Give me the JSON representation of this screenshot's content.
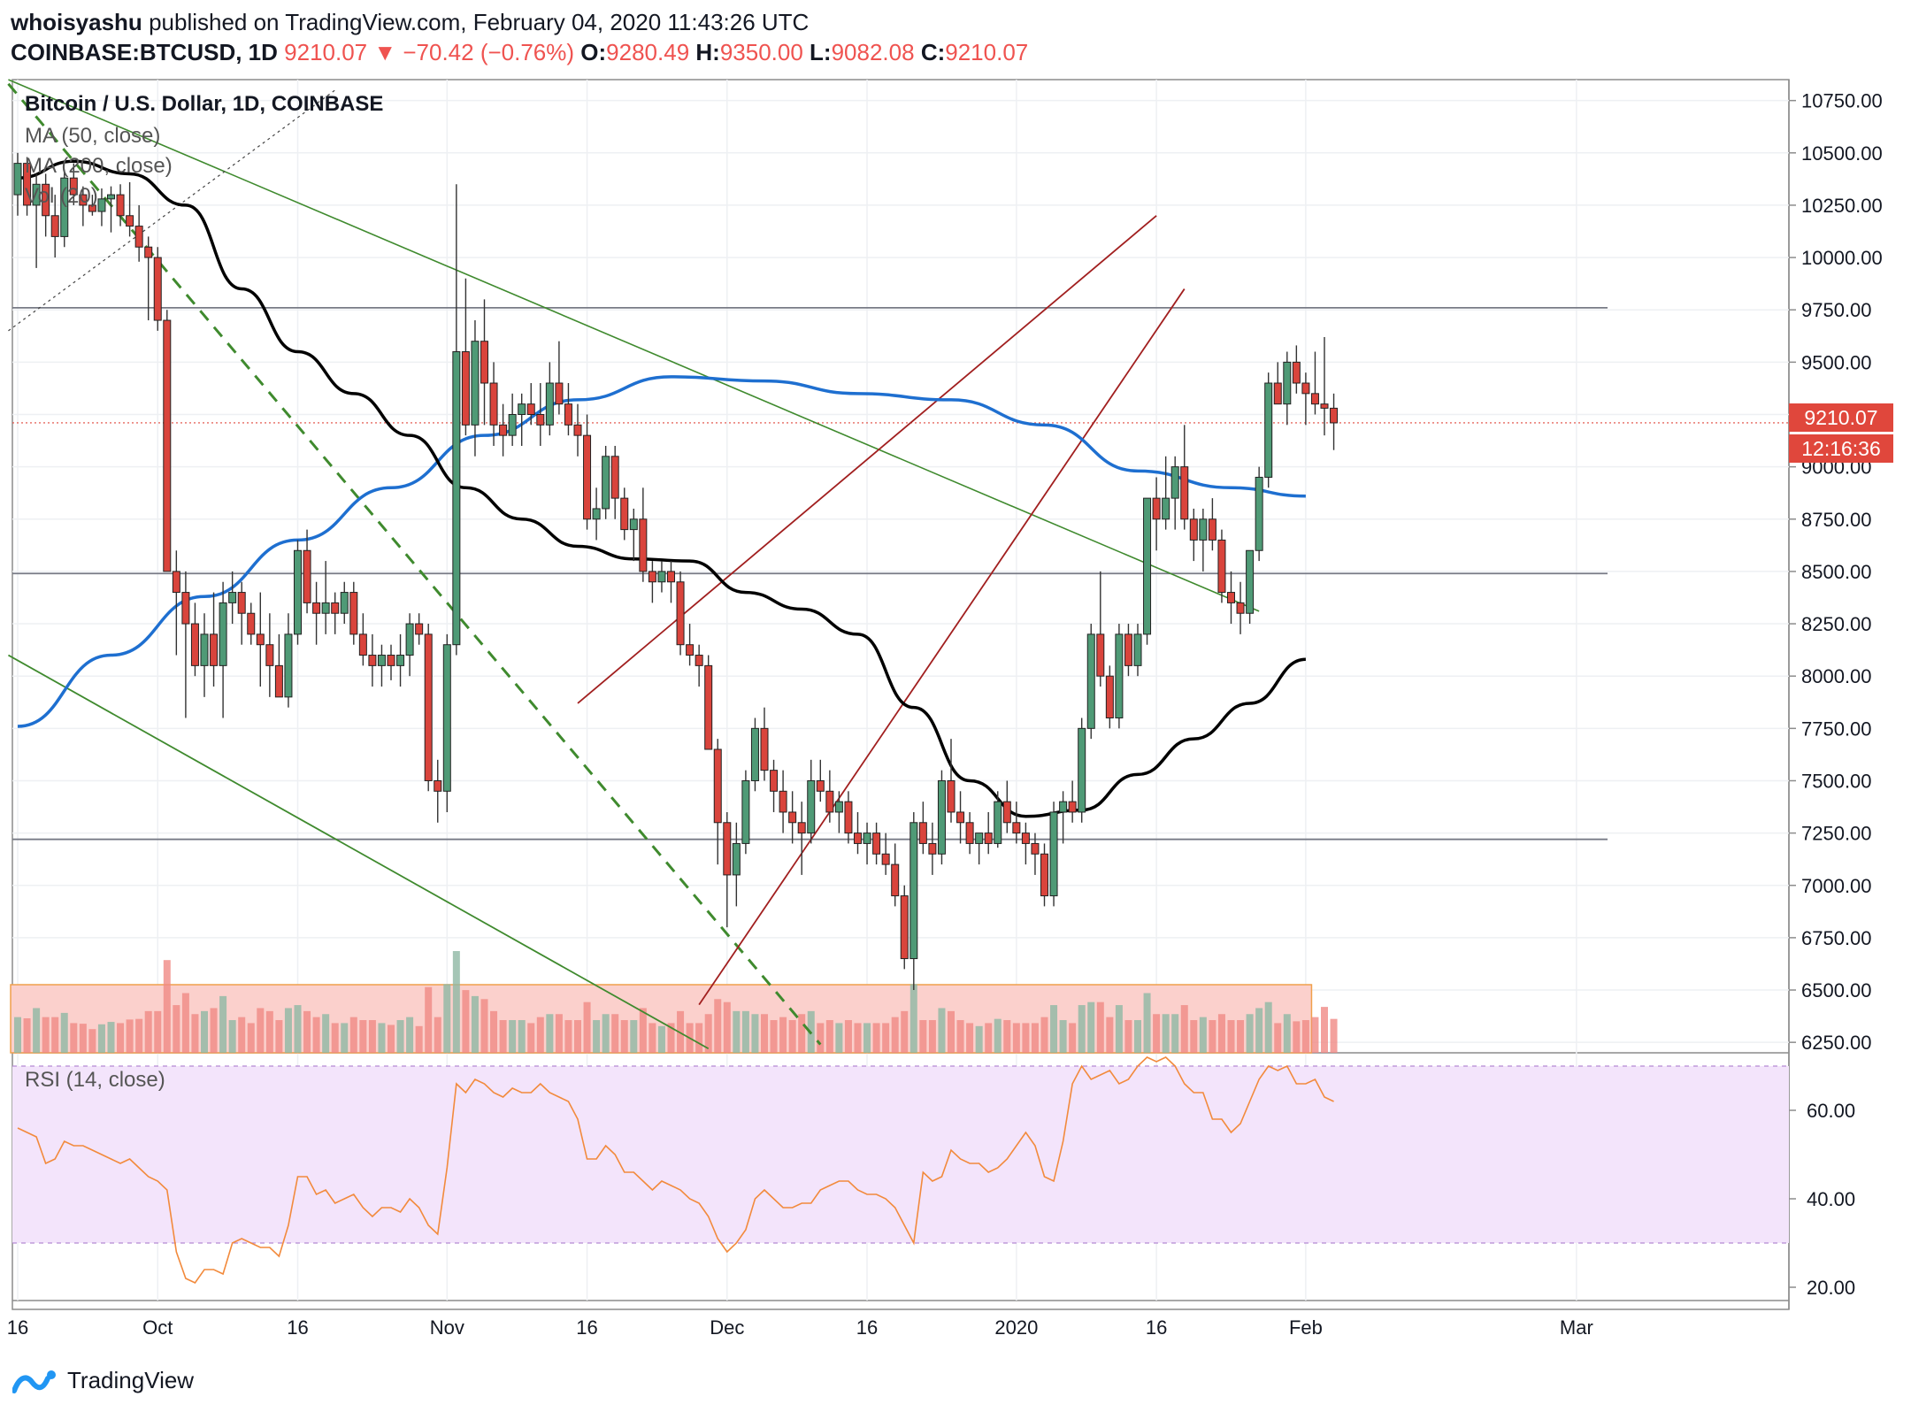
{
  "header": {
    "publisher": "whoisyashu",
    "published_text": "published on TradingView.com, February 04, 2020 11:43:26 UTC",
    "symbol": "COINBASE:BTCUSD, 1D",
    "last": "9210.07",
    "change": "−70.42 (−0.76%)",
    "o_label": "O:",
    "o_value": "9280.49",
    "h_label": "H:",
    "h_value": "9350.00",
    "l_label": "L:",
    "l_value": "9082.08",
    "c_label": "C:",
    "c_value": "9210.07"
  },
  "legend": {
    "title": "Bitcoin / U.S. Dollar, 1D, COINBASE",
    "ma50": "MA (50, close)",
    "ma200": "MA (200, close)",
    "vol": "Vol (20)",
    "rsi": "RSI (14, close)"
  },
  "price_badge": {
    "value": "9210.07",
    "countdown": "12:16:36"
  },
  "footer": {
    "brand": "TradingView"
  },
  "colors": {
    "up": "#4f9a76",
    "down": "#d9443c",
    "ma50": "#000000",
    "ma200": "#1e6fd0",
    "channel": "#a11f1f",
    "green_line": "#3f8a2e",
    "rsi": "#f28a3c",
    "rsi_band": "#f3e4fb",
    "vol_band": "#fbd0cc",
    "price_badge": "#e0473c"
  },
  "chart_data": {
    "type": "candlestick",
    "price_axis": {
      "ticks": [
        6250,
        6500,
        6750,
        7000,
        7250,
        7500,
        7750,
        8000,
        8250,
        8500,
        8750,
        9000,
        9250,
        9500,
        9750,
        10000,
        10250,
        10500,
        10750
      ],
      "range": [
        6200,
        10850
      ]
    },
    "rsi_axis": {
      "ticks": [
        20,
        40,
        60
      ],
      "range": [
        17,
        72
      ],
      "bands": [
        30,
        70
      ]
    },
    "x_labels": [
      "16",
      "Oct",
      "16",
      "Nov",
      "16",
      "Dec",
      "16",
      "2020",
      "16",
      "Feb",
      "Mar"
    ],
    "x_label_days": [
      0,
      15,
      30,
      46,
      61,
      76,
      91,
      107,
      122,
      138,
      167
    ],
    "horizontal_levels": [
      9760,
      8490,
      7220
    ],
    "candles_ohlc": [
      [
        10300,
        10500,
        10200,
        10450
      ],
      [
        10450,
        10480,
        10200,
        10250
      ],
      [
        10250,
        10400,
        9950,
        10350
      ],
      [
        10350,
        10400,
        10100,
        10200
      ],
      [
        10200,
        10300,
        10000,
        10100
      ],
      [
        10100,
        10420,
        10050,
        10380
      ],
      [
        10380,
        10450,
        10250,
        10300
      ],
      [
        10300,
        10340,
        10150,
        10250
      ],
      [
        10250,
        10300,
        10200,
        10220
      ],
      [
        10220,
        10330,
        10150,
        10280
      ],
      [
        10280,
        10340,
        10120,
        10300
      ],
      [
        10300,
        10350,
        10150,
        10200
      ],
      [
        10200,
        10360,
        10100,
        10150
      ],
      [
        10150,
        10250,
        9980,
        10050
      ],
      [
        10050,
        10100,
        9700,
        10000
      ],
      [
        10000,
        10050,
        9650,
        9700
      ],
      [
        9700,
        9750,
        8500,
        8500
      ],
      [
        8500,
        8600,
        8100,
        8400
      ],
      [
        8400,
        8500,
        7800,
        8250
      ],
      [
        8250,
        8350,
        8000,
        8050
      ],
      [
        8050,
        8300,
        7900,
        8200
      ],
      [
        8200,
        8400,
        7950,
        8050
      ],
      [
        8050,
        8450,
        7800,
        8350
      ],
      [
        8350,
        8500,
        8250,
        8400
      ],
      [
        8400,
        8450,
        8150,
        8300
      ],
      [
        8300,
        8350,
        8150,
        8200
      ],
      [
        8200,
        8400,
        7950,
        8150
      ],
      [
        8150,
        8300,
        7900,
        8050
      ],
      [
        8050,
        8200,
        7950,
        7900
      ],
      [
        7900,
        8300,
        7850,
        8200
      ],
      [
        8200,
        8650,
        8150,
        8600
      ],
      [
        8600,
        8700,
        8300,
        8350
      ],
      [
        8350,
        8450,
        8150,
        8300
      ],
      [
        8300,
        8550,
        8200,
        8350
      ],
      [
        8350,
        8400,
        8200,
        8300
      ],
      [
        8300,
        8450,
        8250,
        8400
      ],
      [
        8400,
        8450,
        8150,
        8200
      ],
      [
        8200,
        8300,
        8050,
        8100
      ],
      [
        8100,
        8200,
        7950,
        8050
      ],
      [
        8050,
        8150,
        7950,
        8100
      ],
      [
        8100,
        8150,
        7980,
        8050
      ],
      [
        8050,
        8200,
        7950,
        8100
      ],
      [
        8100,
        8300,
        8000,
        8250
      ],
      [
        8250,
        8300,
        8150,
        8200
      ],
      [
        8200,
        8250,
        7450,
        7500
      ],
      [
        7500,
        7600,
        7300,
        7450
      ],
      [
        7450,
        8200,
        7350,
        8150
      ],
      [
        8150,
        10350,
        8100,
        9550
      ],
      [
        9550,
        9900,
        9150,
        9200
      ],
      [
        9200,
        9700,
        9050,
        9600
      ],
      [
        9600,
        9800,
        9200,
        9400
      ],
      [
        9400,
        9500,
        9100,
        9200
      ],
      [
        9200,
        9300,
        9050,
        9150
      ],
      [
        9150,
        9350,
        9100,
        9250
      ],
      [
        9250,
        9350,
        9100,
        9300
      ],
      [
        9300,
        9400,
        9200,
        9250
      ],
      [
        9250,
        9400,
        9100,
        9200
      ],
      [
        9200,
        9500,
        9150,
        9400
      ],
      [
        9400,
        9600,
        9250,
        9300
      ],
      [
        9300,
        9400,
        9150,
        9200
      ],
      [
        9200,
        9300,
        9050,
        9150
      ],
      [
        9150,
        9250,
        8700,
        8750
      ],
      [
        8750,
        8900,
        8650,
        8800
      ],
      [
        8800,
        9100,
        8750,
        9050
      ],
      [
        9050,
        9100,
        8750,
        8850
      ],
      [
        8850,
        8900,
        8650,
        8700
      ],
      [
        8700,
        8800,
        8550,
        8750
      ],
      [
        8750,
        8900,
        8450,
        8500
      ],
      [
        8500,
        8550,
        8350,
        8450
      ],
      [
        8450,
        8550,
        8400,
        8500
      ],
      [
        8500,
        8550,
        8350,
        8450
      ],
      [
        8450,
        8500,
        8100,
        8150
      ],
      [
        8150,
        8250,
        8050,
        8100
      ],
      [
        8100,
        8150,
        7950,
        8050
      ],
      [
        8050,
        8100,
        7750,
        7650
      ],
      [
        7650,
        7700,
        7100,
        7300
      ],
      [
        7300,
        7350,
        6800,
        7050
      ],
      [
        7050,
        7300,
        6900,
        7200
      ],
      [
        7200,
        7550,
        7150,
        7500
      ],
      [
        7500,
        7800,
        7450,
        7750
      ],
      [
        7750,
        7850,
        7500,
        7550
      ],
      [
        7550,
        7600,
        7350,
        7450
      ],
      [
        7450,
        7550,
        7250,
        7350
      ],
      [
        7350,
        7450,
        7200,
        7300
      ],
      [
        7300,
        7400,
        7050,
        7250
      ],
      [
        7250,
        7600,
        7200,
        7500
      ],
      [
        7500,
        7600,
        7400,
        7450
      ],
      [
        7450,
        7550,
        7300,
        7350
      ],
      [
        7350,
        7450,
        7250,
        7400
      ],
      [
        7400,
        7450,
        7200,
        7250
      ],
      [
        7250,
        7350,
        7150,
        7200
      ],
      [
        7200,
        7300,
        7100,
        7250
      ],
      [
        7250,
        7300,
        7100,
        7150
      ],
      [
        7150,
        7250,
        7050,
        7100
      ],
      [
        7100,
        7200,
        6900,
        6950
      ],
      [
        6950,
        7000,
        6600,
        6650
      ],
      [
        6650,
        7350,
        6500,
        7300
      ],
      [
        7300,
        7400,
        7150,
        7200
      ],
      [
        7200,
        7300,
        7050,
        7150
      ],
      [
        7150,
        7550,
        7100,
        7500
      ],
      [
        7500,
        7700,
        7300,
        7350
      ],
      [
        7350,
        7450,
        7200,
        7300
      ],
      [
        7300,
        7350,
        7150,
        7200
      ],
      [
        7200,
        7250,
        7100,
        7250
      ],
      [
        7250,
        7350,
        7150,
        7200
      ],
      [
        7200,
        7450,
        7180,
        7400
      ],
      [
        7400,
        7500,
        7250,
        7300
      ],
      [
        7300,
        7400,
        7200,
        7250
      ],
      [
        7250,
        7300,
        7100,
        7200
      ],
      [
        7200,
        7250,
        7050,
        7150
      ],
      [
        7150,
        7200,
        6900,
        6950
      ],
      [
        6950,
        7400,
        6900,
        7350
      ],
      [
        7350,
        7450,
        7200,
        7400
      ],
      [
        7400,
        7500,
        7300,
        7350
      ],
      [
        7350,
        7800,
        7300,
        7750
      ],
      [
        7750,
        8250,
        7700,
        8200
      ],
      [
        8200,
        8500,
        7950,
        8000
      ],
      [
        8000,
        8050,
        7750,
        7800
      ],
      [
        7800,
        8250,
        7750,
        8200
      ],
      [
        8200,
        8250,
        8000,
        8050
      ],
      [
        8050,
        8250,
        8000,
        8200
      ],
      [
        8200,
        8850,
        8150,
        8850
      ],
      [
        8850,
        8950,
        8600,
        8750
      ],
      [
        8750,
        9050,
        8700,
        8850
      ],
      [
        8850,
        9050,
        8700,
        9000
      ],
      [
        9000,
        9200,
        8700,
        8750
      ],
      [
        8750,
        8800,
        8550,
        8650
      ],
      [
        8650,
        8800,
        8500,
        8750
      ],
      [
        8750,
        8850,
        8600,
        8650
      ],
      [
        8650,
        8700,
        8350,
        8400
      ],
      [
        8400,
        8500,
        8250,
        8350
      ],
      [
        8350,
        8450,
        8200,
        8300
      ],
      [
        8300,
        8600,
        8250,
        8600
      ],
      [
        8600,
        9000,
        8550,
        8950
      ],
      [
        8950,
        9450,
        8900,
        9400
      ],
      [
        9400,
        9500,
        9300,
        9300
      ],
      [
        9300,
        9550,
        9200,
        9500
      ],
      [
        9500,
        9580,
        9350,
        9400
      ],
      [
        9400,
        9450,
        9200,
        9350
      ],
      [
        9350,
        9550,
        9250,
        9300
      ],
      [
        9300,
        9620,
        9150,
        9280
      ],
      [
        9280,
        9350,
        9080,
        9210
      ]
    ],
    "ma50_points": [
      [
        0,
        10380
      ],
      [
        6,
        10460
      ],
      [
        12,
        10400
      ],
      [
        18,
        10250
      ],
      [
        24,
        9850
      ],
      [
        30,
        9550
      ],
      [
        36,
        9350
      ],
      [
        42,
        9150
      ],
      [
        48,
        8900
      ],
      [
        54,
        8750
      ],
      [
        60,
        8620
      ],
      [
        66,
        8560
      ],
      [
        72,
        8550
      ],
      [
        78,
        8400
      ],
      [
        84,
        8320
      ],
      [
        90,
        8200
      ],
      [
        96,
        7850
      ],
      [
        102,
        7500
      ],
      [
        108,
        7330
      ],
      [
        114,
        7360
      ],
      [
        120,
        7530
      ],
      [
        126,
        7700
      ],
      [
        132,
        7870
      ],
      [
        138,
        8080
      ]
    ],
    "ma200_points": [
      [
        0,
        7760
      ],
      [
        10,
        8100
      ],
      [
        20,
        8380
      ],
      [
        30,
        8650
      ],
      [
        40,
        8900
      ],
      [
        50,
        9150
      ],
      [
        60,
        9320
      ],
      [
        70,
        9430
      ],
      [
        80,
        9410
      ],
      [
        90,
        9350
      ],
      [
        100,
        9320
      ],
      [
        110,
        9200
      ],
      [
        120,
        8980
      ],
      [
        130,
        8900
      ],
      [
        138,
        8860
      ]
    ],
    "volume_band": {
      "from": 0,
      "to": 139
    },
    "rsi_values": [
      56,
      55,
      54,
      48,
      49,
      53,
      52,
      52,
      51,
      50,
      49,
      48,
      49,
      47,
      45,
      44,
      42,
      28,
      22,
      21,
      24,
      24,
      23,
      30,
      31,
      30,
      29,
      29,
      27,
      34,
      45,
      45,
      41,
      42,
      39,
      40,
      41,
      38,
      36,
      38,
      38,
      37,
      40,
      38,
      34,
      32,
      47,
      66,
      64,
      67,
      66,
      64,
      63,
      65,
      64,
      64,
      66,
      64,
      63,
      62,
      58,
      49,
      49,
      52,
      50,
      46,
      46,
      44,
      42,
      44,
      43,
      42,
      40,
      39,
      36,
      31,
      28,
      30,
      33,
      40,
      42,
      40,
      38,
      38,
      39,
      39,
      42,
      43,
      44,
      44,
      42,
      41,
      41,
      40,
      38,
      34,
      30,
      46,
      44,
      45,
      51,
      49,
      48,
      48,
      46,
      47,
      49,
      52,
      55,
      52,
      45,
      44,
      53,
      66,
      70,
      67,
      68,
      69,
      66,
      67,
      70,
      72,
      71,
      72,
      70,
      66,
      64,
      64,
      58,
      58,
      55,
      57,
      62,
      67,
      70,
      69,
      70,
      66,
      66,
      67,
      63,
      62
    ]
  }
}
